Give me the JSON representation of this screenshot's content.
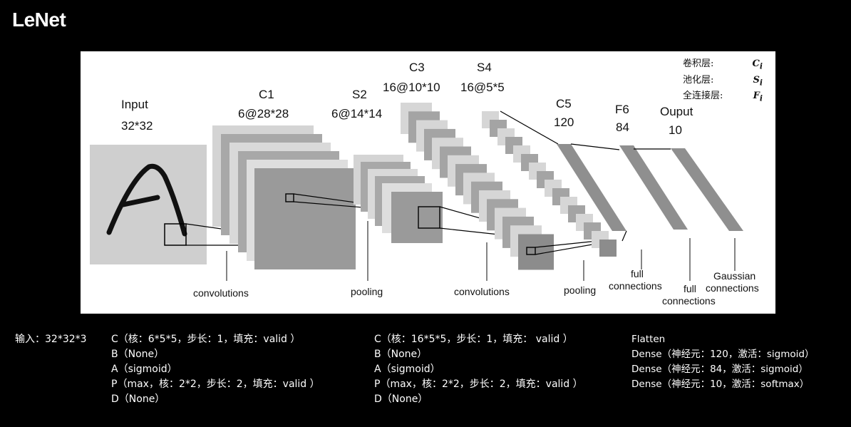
{
  "title": "LeNet",
  "diagram": {
    "layers": [
      {
        "id": "input",
        "name": "Input",
        "size": "32*32"
      },
      {
        "id": "c1",
        "name": "C1",
        "size": "6@28*28"
      },
      {
        "id": "s2",
        "name": "S2",
        "size": "6@14*14"
      },
      {
        "id": "c3",
        "name": "C3",
        "size": "16@10*10"
      },
      {
        "id": "s4",
        "name": "S4",
        "size": "16@5*5"
      },
      {
        "id": "c5",
        "name": "C5",
        "size": "120"
      },
      {
        "id": "f6",
        "name": "F6",
        "size": "84"
      },
      {
        "id": "output",
        "name": "Ouput",
        "size": "10"
      }
    ],
    "operations": {
      "conv1": "convolutions",
      "pool1": "pooling",
      "conv2": "convolutions",
      "pool2": "pooling",
      "full1": [
        "full",
        "connections"
      ],
      "full2": [
        "full",
        "connections"
      ],
      "gauss": [
        "Gaussian",
        "connections"
      ]
    },
    "legend": [
      {
        "label": "卷积层:",
        "symbol": "C",
        "sub": "i"
      },
      {
        "label": "池化层:",
        "symbol": "S",
        "sub": "i"
      },
      {
        "label": "全连接层:",
        "symbol": "F",
        "sub": "i"
      }
    ]
  },
  "params": {
    "input": "输入：32*32*3",
    "block1": [
      "C（核：6*5*5，步长：1，填充：valid ）",
      "B（None）",
      "A（sigmoid）",
      "P（max，核：2*2，步长：2，填充：valid ）",
      "D（None）"
    ],
    "block2": [
      "C（核：16*5*5，步长：1，填充： valid ）",
      "B（None）",
      "A（sigmoid）",
      "P（max，核：2*2，步长：2，填充：valid ）",
      "D（None）"
    ],
    "block3": [
      "Flatten",
      "Dense（神经元：120，激活：sigmoid）",
      "Dense（神经元：84，激活：sigmoid）",
      "Dense（神经元：10，激活：softmax）"
    ]
  }
}
